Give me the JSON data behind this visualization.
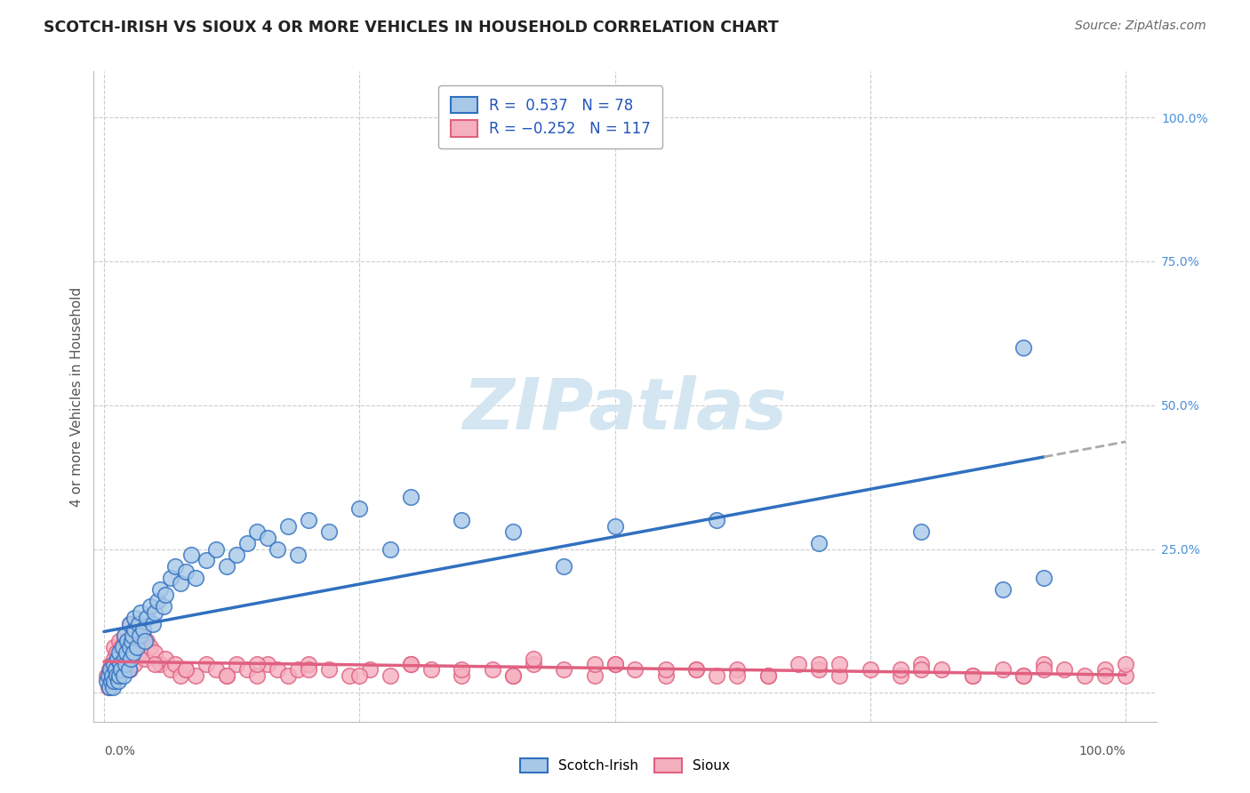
{
  "title": "SCOTCH-IRISH VS SIOUX 4 OR MORE VEHICLES IN HOUSEHOLD CORRELATION CHART",
  "source": "Source: ZipAtlas.com",
  "ylabel": "4 or more Vehicles in Household",
  "scotch_irish_R": 0.537,
  "scotch_irish_N": 78,
  "sioux_R": -0.252,
  "sioux_N": 117,
  "scotch_irish_color": "#a8c8e8",
  "sioux_color": "#f5b0c0",
  "scotch_irish_line_color": "#3070c0",
  "sioux_line_color": "#e06080",
  "watermark_text": "ZIPatlas",
  "watermark_color": "#d0e4f0",
  "right_axis_color": "#4a90d9",
  "scotch_irish_x": [
    0.3,
    0.4,
    0.5,
    0.6,
    0.7,
    0.8,
    0.9,
    1.0,
    1.0,
    1.1,
    1.2,
    1.3,
    1.4,
    1.5,
    1.5,
    1.6,
    1.7,
    1.8,
    1.9,
    2.0,
    2.0,
    2.1,
    2.2,
    2.3,
    2.4,
    2.5,
    2.5,
    2.6,
    2.7,
    2.8,
    2.9,
    3.0,
    3.0,
    3.2,
    3.4,
    3.5,
    3.6,
    3.8,
    4.0,
    4.2,
    4.5,
    4.8,
    5.0,
    5.2,
    5.5,
    5.8,
    6.0,
    6.5,
    7.0,
    7.5,
    8.0,
    8.5,
    9.0,
    10.0,
    11.0,
    12.0,
    13.0,
    14.0,
    15.0,
    16.0,
    17.0,
    18.0,
    19.0,
    20.0,
    22.0,
    25.0,
    28.0,
    30.0,
    35.0,
    40.0,
    45.0,
    50.0,
    60.0,
    70.0,
    80.0,
    88.0,
    90.0,
    92.0
  ],
  "scotch_irish_y": [
    2,
    3,
    1,
    4,
    2,
    3,
    1,
    5,
    2,
    4,
    3,
    6,
    2,
    7,
    3,
    5,
    4,
    8,
    3,
    6,
    10,
    5,
    7,
    9,
    4,
    8,
    12,
    6,
    9,
    10,
    7,
    11,
    13,
    8,
    12,
    10,
    14,
    11,
    9,
    13,
    15,
    12,
    14,
    16,
    18,
    15,
    17,
    20,
    22,
    19,
    21,
    24,
    20,
    23,
    25,
    22,
    24,
    26,
    28,
    27,
    25,
    29,
    24,
    30,
    28,
    32,
    25,
    34,
    30,
    28,
    22,
    29,
    30,
    26,
    28,
    18,
    60,
    20
  ],
  "sioux_x": [
    0.3,
    0.4,
    0.5,
    0.5,
    0.6,
    0.7,
    0.8,
    0.8,
    0.9,
    1.0,
    1.0,
    1.1,
    1.2,
    1.3,
    1.4,
    1.5,
    1.5,
    1.6,
    1.7,
    1.8,
    1.9,
    2.0,
    2.0,
    2.1,
    2.2,
    2.3,
    2.4,
    2.5,
    2.5,
    2.7,
    2.8,
    3.0,
    3.0,
    3.2,
    3.5,
    3.8,
    4.0,
    4.2,
    4.5,
    5.0,
    5.5,
    6.0,
    6.5,
    7.0,
    7.5,
    8.0,
    9.0,
    10.0,
    11.0,
    12.0,
    13.0,
    14.0,
    15.0,
    16.0,
    17.0,
    18.0,
    19.0,
    20.0,
    22.0,
    24.0,
    26.0,
    28.0,
    30.0,
    32.0,
    35.0,
    38.0,
    40.0,
    42.0,
    45.0,
    48.0,
    50.0,
    52.0,
    55.0,
    58.0,
    60.0,
    62.0,
    65.0,
    68.0,
    70.0,
    72.0,
    75.0,
    78.0,
    80.0,
    82.0,
    85.0,
    88.0,
    90.0,
    92.0,
    94.0,
    96.0,
    98.0,
    100.0,
    42.0,
    50.0,
    58.0,
    65.0,
    72.0,
    78.0,
    85.0,
    92.0,
    98.0,
    5.0,
    8.0,
    12.0,
    15.0,
    20.0,
    25.0,
    30.0,
    35.0,
    40.0,
    48.0,
    55.0,
    62.0,
    70.0,
    80.0,
    90.0,
    100.0
  ],
  "sioux_y": [
    3,
    1,
    4,
    2,
    3,
    5,
    2,
    4,
    3,
    6,
    8,
    5,
    7,
    4,
    6,
    9,
    3,
    5,
    8,
    6,
    4,
    10,
    7,
    5,
    9,
    6,
    8,
    12,
    4,
    7,
    9,
    5,
    11,
    8,
    7,
    10,
    6,
    9,
    8,
    7,
    5,
    6,
    4,
    5,
    3,
    4,
    3,
    5,
    4,
    3,
    5,
    4,
    3,
    5,
    4,
    3,
    4,
    5,
    4,
    3,
    4,
    3,
    5,
    4,
    3,
    4,
    3,
    5,
    4,
    3,
    5,
    4,
    3,
    4,
    3,
    4,
    3,
    5,
    4,
    3,
    4,
    3,
    5,
    4,
    3,
    4,
    3,
    5,
    4,
    3,
    4,
    3,
    6,
    5,
    4,
    3,
    5,
    4,
    3,
    4,
    3,
    5,
    4,
    3,
    5,
    4,
    3,
    5,
    4,
    3,
    5,
    4,
    3,
    5,
    4,
    3,
    5
  ]
}
